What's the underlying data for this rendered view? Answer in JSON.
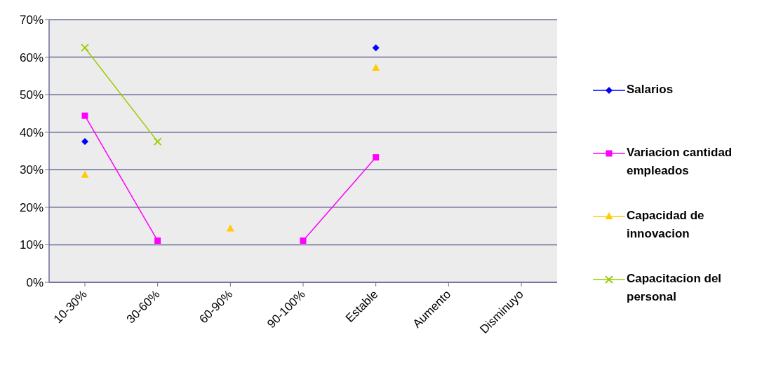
{
  "chart_data": {
    "type": "line",
    "categories": [
      "10-30%",
      "30-60%",
      "60-90%",
      "90-100%",
      "Estable",
      "Aumento",
      "Disminuyo"
    ],
    "series": [
      {
        "name": "Salarios",
        "type": "scatter",
        "color": "#0000ff",
        "marker": "diamond",
        "values": [
          37.5,
          null,
          null,
          null,
          62.5,
          null,
          null
        ]
      },
      {
        "name": "Variacion cantidad empleados",
        "color": "#ff00ff",
        "marker": "square",
        "values": [
          44.4,
          11.1,
          null,
          11.1,
          33.3,
          null,
          null
        ]
      },
      {
        "name": "Capacidad de innovacion",
        "type": "scatter",
        "color": "#ffcc00",
        "marker": "triangle",
        "values": [
          28.6,
          null,
          14.3,
          null,
          57.1,
          null,
          null
        ]
      },
      {
        "name": "Capacitacion del personal",
        "color": "#99cc00",
        "marker": "cross",
        "values": [
          62.5,
          37.5,
          null,
          null,
          null,
          null,
          null
        ]
      }
    ],
    "ylim": [
      0,
      70
    ],
    "yticks": [
      {
        "value": 0,
        "label": "0%"
      },
      {
        "value": 10,
        "label": "10%"
      },
      {
        "value": 20,
        "label": "20%"
      },
      {
        "value": 30,
        "label": "30%"
      },
      {
        "value": 40,
        "label": "40%"
      },
      {
        "value": 50,
        "label": "50%"
      },
      {
        "value": 60,
        "label": "60%"
      },
      {
        "value": 70,
        "label": "70%"
      }
    ],
    "grid": "y",
    "legend": "right",
    "line_style": "solid"
  }
}
